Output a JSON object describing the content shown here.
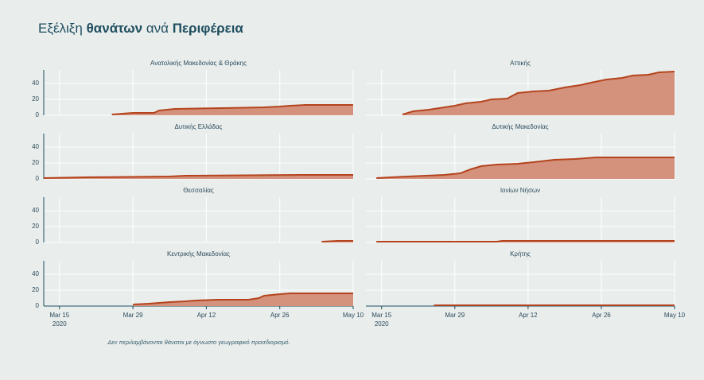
{
  "title_parts": [
    "Εξέλιξη ",
    "θανάτων",
    " ανά ",
    "Περιφέρεια"
  ],
  "footnote": "Δεν περιλαμβάνονται θάνατοι με άγνωστο γεωγραφικό προσδιορισμό.",
  "xaxis_year": "2020",
  "chart_data": [
    {
      "type": "area",
      "title": "Ανατολικής Μακεδονίας & Θράκης",
      "color": "#b5441e",
      "fill": "#d4917b",
      "x": [
        "2020-03-25",
        "2020-03-29",
        "2020-04-02",
        "2020-04-03",
        "2020-04-06",
        "2020-04-15",
        "2020-04-23",
        "2020-04-26",
        "2020-04-28",
        "2020-05-01",
        "2020-05-10"
      ],
      "values": [
        1,
        3,
        3,
        6,
        8,
        9,
        10,
        11,
        12,
        13,
        13
      ],
      "xlim": [
        "2020-03-12",
        "2020-05-10"
      ],
      "ylim": [
        0,
        57
      ],
      "yticks": [
        0,
        20,
        40
      ],
      "xticks": [
        {
          "value": "2020-03-15",
          "label": "Mar 15"
        },
        {
          "value": "2020-03-29",
          "label": "Mar 29"
        },
        {
          "value": "2020-04-12",
          "label": "Apr 12"
        },
        {
          "value": "2020-04-26",
          "label": "Apr 26"
        },
        {
          "value": "2020-05-10",
          "label": "May 10"
        }
      ]
    },
    {
      "type": "area",
      "title": "Αττικής",
      "color": "#b5441e",
      "fill": "#d4917b",
      "x": [
        "2020-03-19",
        "2020-03-21",
        "2020-03-24",
        "2020-03-27",
        "2020-03-29",
        "2020-03-31",
        "2020-04-03",
        "2020-04-05",
        "2020-04-08",
        "2020-04-10",
        "2020-04-13",
        "2020-04-16",
        "2020-04-19",
        "2020-04-22",
        "2020-04-24",
        "2020-04-27",
        "2020-04-30",
        "2020-05-02",
        "2020-05-05",
        "2020-05-07",
        "2020-05-10"
      ],
      "values": [
        1,
        5,
        7,
        10,
        12,
        15,
        17,
        20,
        21,
        28,
        30,
        31,
        35,
        38,
        41,
        45,
        47,
        50,
        51,
        54,
        55
      ],
      "xlim": [
        "2020-03-12",
        "2020-05-10"
      ],
      "ylim": [
        0,
        57
      ],
      "yticks": [
        0,
        20,
        40
      ],
      "xticks": [
        {
          "value": "2020-03-15",
          "label": "Mar 15"
        },
        {
          "value": "2020-03-29",
          "label": "Mar 29"
        },
        {
          "value": "2020-04-12",
          "label": "Apr 12"
        },
        {
          "value": "2020-04-26",
          "label": "Apr 26"
        },
        {
          "value": "2020-05-10",
          "label": "May 10"
        }
      ]
    },
    {
      "type": "area",
      "title": "Δυτικής Ελλάδας",
      "color": "#b5441e",
      "fill": "#d4917b",
      "x": [
        "2020-03-12",
        "2020-03-20",
        "2020-04-05",
        "2020-04-08",
        "2020-04-30",
        "2020-05-10"
      ],
      "values": [
        1,
        2,
        3,
        4,
        5,
        5
      ],
      "xlim": [
        "2020-03-12",
        "2020-05-10"
      ],
      "ylim": [
        0,
        57
      ],
      "yticks": [
        0,
        20,
        40
      ],
      "xticks": [
        {
          "value": "2020-03-15",
          "label": "Mar 15"
        },
        {
          "value": "2020-03-29",
          "label": "Mar 29"
        },
        {
          "value": "2020-04-12",
          "label": "Apr 12"
        },
        {
          "value": "2020-04-26",
          "label": "Apr 26"
        },
        {
          "value": "2020-05-10",
          "label": "May 10"
        }
      ]
    },
    {
      "type": "area",
      "title": "Δυτικής Μακεδονίας",
      "color": "#b5441e",
      "fill": "#d4917b",
      "x": [
        "2020-03-14",
        "2020-03-20",
        "2020-03-27",
        "2020-03-30",
        "2020-04-01",
        "2020-04-03",
        "2020-04-06",
        "2020-04-10",
        "2020-04-13",
        "2020-04-17",
        "2020-04-21",
        "2020-04-25",
        "2020-05-10"
      ],
      "values": [
        1,
        3,
        5,
        7,
        12,
        16,
        18,
        19,
        21,
        24,
        25,
        27,
        27
      ],
      "xlim": [
        "2020-03-12",
        "2020-05-10"
      ],
      "ylim": [
        0,
        57
      ],
      "yticks": [
        0,
        20,
        40
      ],
      "xticks": [
        {
          "value": "2020-03-15",
          "label": "Mar 15"
        },
        {
          "value": "2020-03-29",
          "label": "Mar 29"
        },
        {
          "value": "2020-04-12",
          "label": "Apr 12"
        },
        {
          "value": "2020-04-26",
          "label": "Apr 26"
        },
        {
          "value": "2020-05-10",
          "label": "May 10"
        }
      ]
    },
    {
      "type": "area",
      "title": "Θεσσαλίας",
      "color": "#b5441e",
      "fill": "#d4917b",
      "x": [
        "2020-05-04",
        "2020-05-07",
        "2020-05-10"
      ],
      "values": [
        1,
        2,
        2
      ],
      "xlim": [
        "2020-03-12",
        "2020-05-10"
      ],
      "ylim": [
        0,
        57
      ],
      "yticks": [
        0,
        20,
        40
      ],
      "xticks": [
        {
          "value": "2020-03-15",
          "label": "Mar 15"
        },
        {
          "value": "2020-03-29",
          "label": "Mar 29"
        },
        {
          "value": "2020-04-12",
          "label": "Apr 12"
        },
        {
          "value": "2020-04-26",
          "label": "Apr 26"
        },
        {
          "value": "2020-05-10",
          "label": "May 10"
        }
      ]
    },
    {
      "type": "area",
      "title": "Ιονίων Νήσων",
      "color": "#b5441e",
      "fill": "#d4917b",
      "x": [
        "2020-03-14",
        "2020-04-06",
        "2020-04-07",
        "2020-05-10"
      ],
      "values": [
        1,
        1,
        2,
        2
      ],
      "xlim": [
        "2020-03-12",
        "2020-05-10"
      ],
      "ylim": [
        0,
        57
      ],
      "yticks": [
        0,
        20,
        40
      ],
      "xticks": [
        {
          "value": "2020-03-15",
          "label": "Mar 15"
        },
        {
          "value": "2020-03-29",
          "label": "Mar 29"
        },
        {
          "value": "2020-04-12",
          "label": "Apr 12"
        },
        {
          "value": "2020-04-26",
          "label": "Apr 26"
        },
        {
          "value": "2020-05-10",
          "label": "May 10"
        }
      ]
    },
    {
      "type": "area",
      "title": "Κεντρικής Μακεδονίας",
      "color": "#b5441e",
      "fill": "#d4917b",
      "x": [
        "2020-03-29",
        "2020-04-01",
        "2020-04-05",
        "2020-04-08",
        "2020-04-10",
        "2020-04-14",
        "2020-04-20",
        "2020-04-22",
        "2020-04-23",
        "2020-04-26",
        "2020-04-28",
        "2020-05-10"
      ],
      "values": [
        2,
        3,
        5,
        6,
        7,
        8,
        8,
        10,
        13,
        15,
        16,
        16
      ],
      "xlim": [
        "2020-03-12",
        "2020-05-10"
      ],
      "ylim": [
        0,
        57
      ],
      "yticks": [
        0,
        20,
        40
      ],
      "xticks": [
        {
          "value": "2020-03-15",
          "label": "Mar 15"
        },
        {
          "value": "2020-03-29",
          "label": "Mar 29"
        },
        {
          "value": "2020-04-12",
          "label": "Apr 12"
        },
        {
          "value": "2020-04-26",
          "label": "Apr 26"
        },
        {
          "value": "2020-05-10",
          "label": "May 10"
        }
      ]
    },
    {
      "type": "area",
      "title": "Κρήτης",
      "color": "#b5441e",
      "fill": "#d4917b",
      "x": [
        "2020-03-25",
        "2020-05-10"
      ],
      "values": [
        1,
        1
      ],
      "xlim": [
        "2020-03-12",
        "2020-05-10"
      ],
      "ylim": [
        0,
        57
      ],
      "yticks": [
        0,
        20,
        40
      ],
      "xticks": [
        {
          "value": "2020-03-15",
          "label": "Mar 15"
        },
        {
          "value": "2020-03-29",
          "label": "Mar 29"
        },
        {
          "value": "2020-04-12",
          "label": "Apr 12"
        },
        {
          "value": "2020-04-26",
          "label": "Apr 26"
        },
        {
          "value": "2020-05-10",
          "label": "May 10"
        }
      ]
    }
  ]
}
